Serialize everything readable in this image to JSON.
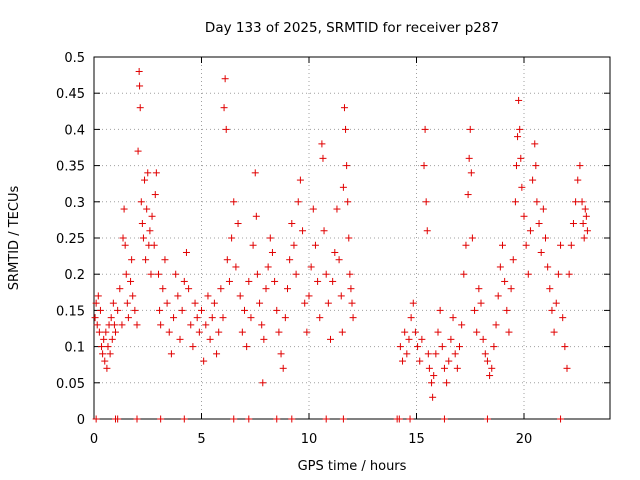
{
  "chart_data": {
    "type": "scatter",
    "title": "Day 133 of 2025, SRMTID for receiver p287",
    "xlabel": "GPS time / hours",
    "ylabel": "SRMTID / TECUs",
    "xlim": [
      0,
      24
    ],
    "ylim": [
      0,
      0.5
    ],
    "xticks": [
      0,
      5,
      10,
      15,
      20
    ],
    "xtick_labels": [
      "0",
      "5",
      "10",
      "15",
      "20"
    ],
    "yticks": [
      0,
      0.05,
      0.1,
      0.15,
      0.2,
      0.25,
      0.3,
      0.35,
      0.4,
      0.45,
      0.5
    ],
    "ytick_labels": [
      "0",
      "0.05",
      "0.1",
      "0.15",
      "0.2",
      "0.25",
      "0.3",
      "0.35",
      "0.4",
      "0.45",
      "0.5"
    ],
    "grid": true,
    "marker": "plus",
    "color": "#e00000",
    "series": [
      {
        "name": "SRMTID",
        "points": [
          [
            0.05,
            0.14
          ],
          [
            0.1,
            0.16
          ],
          [
            0.15,
            0.13
          ],
          [
            0.2,
            0.17
          ],
          [
            0.25,
            0.12
          ],
          [
            0.3,
            0.15
          ],
          [
            0.35,
            0.1
          ],
          [
            0.4,
            0.09
          ],
          [
            0.45,
            0.11
          ],
          [
            0.5,
            0.08
          ],
          [
            0.55,
            0.12
          ],
          [
            0.6,
            0.07
          ],
          [
            0.65,
            0.1
          ],
          [
            0.7,
            0.13
          ],
          [
            0.75,
            0.09
          ],
          [
            0.8,
            0.14
          ],
          [
            0.85,
            0.11
          ],
          [
            0.9,
            0.16
          ],
          [
            0.95,
            0.13
          ],
          [
            1.0,
            0.12
          ],
          [
            1.1,
            0.15
          ],
          [
            1.2,
            0.18
          ],
          [
            1.3,
            0.13
          ],
          [
            1.35,
            0.25
          ],
          [
            1.4,
            0.29
          ],
          [
            1.45,
            0.24
          ],
          [
            1.5,
            0.2
          ],
          [
            1.55,
            0.16
          ],
          [
            1.6,
            0.14
          ],
          [
            1.7,
            0.19
          ],
          [
            1.75,
            0.22
          ],
          [
            1.8,
            0.17
          ],
          [
            1.9,
            0.15
          ],
          [
            2.0,
            0.13
          ],
          [
            2.05,
            0.37
          ],
          [
            2.1,
            0.48
          ],
          [
            2.12,
            0.46
          ],
          [
            2.15,
            0.43
          ],
          [
            2.2,
            0.3
          ],
          [
            2.25,
            0.27
          ],
          [
            2.3,
            0.25
          ],
          [
            2.35,
            0.33
          ],
          [
            2.4,
            0.22
          ],
          [
            2.45,
            0.29
          ],
          [
            2.5,
            0.34
          ],
          [
            2.55,
            0.24
          ],
          [
            2.6,
            0.26
          ],
          [
            2.65,
            0.2
          ],
          [
            2.7,
            0.28
          ],
          [
            2.8,
            0.24
          ],
          [
            2.85,
            0.31
          ],
          [
            2.9,
            0.34
          ],
          [
            3.0,
            0.2
          ],
          [
            3.05,
            0.15
          ],
          [
            3.1,
            0.13
          ],
          [
            3.2,
            0.18
          ],
          [
            3.3,
            0.22
          ],
          [
            3.4,
            0.16
          ],
          [
            3.5,
            0.12
          ],
          [
            3.6,
            0.09
          ],
          [
            3.7,
            0.14
          ],
          [
            3.8,
            0.2
          ],
          [
            3.9,
            0.17
          ],
          [
            4.0,
            0.11
          ],
          [
            4.1,
            0.15
          ],
          [
            4.2,
            0.19
          ],
          [
            4.3,
            0.23
          ],
          [
            4.4,
            0.18
          ],
          [
            4.5,
            0.13
          ],
          [
            4.6,
            0.1
          ],
          [
            4.7,
            0.16
          ],
          [
            4.8,
            0.14
          ],
          [
            4.9,
            0.12
          ],
          [
            5.0,
            0.15
          ],
          [
            5.1,
            0.08
          ],
          [
            5.2,
            0.13
          ],
          [
            5.3,
            0.17
          ],
          [
            5.4,
            0.11
          ],
          [
            5.5,
            0.14
          ],
          [
            5.6,
            0.16
          ],
          [
            5.7,
            0.09
          ],
          [
            5.8,
            0.12
          ],
          [
            5.9,
            0.18
          ],
          [
            6.0,
            0.14
          ],
          [
            6.05,
            0.43
          ],
          [
            6.1,
            0.47
          ],
          [
            6.15,
            0.4
          ],
          [
            6.2,
            0.22
          ],
          [
            6.3,
            0.19
          ],
          [
            6.4,
            0.25
          ],
          [
            6.5,
            0.3
          ],
          [
            6.6,
            0.21
          ],
          [
            6.7,
            0.27
          ],
          [
            6.8,
            0.17
          ],
          [
            6.9,
            0.12
          ],
          [
            7.0,
            0.15
          ],
          [
            7.1,
            0.1
          ],
          [
            7.2,
            0.19
          ],
          [
            7.3,
            0.14
          ],
          [
            7.4,
            0.24
          ],
          [
            7.5,
            0.34
          ],
          [
            7.55,
            0.28
          ],
          [
            7.6,
            0.2
          ],
          [
            7.7,
            0.16
          ],
          [
            7.8,
            0.13
          ],
          [
            7.85,
            0.05
          ],
          [
            7.9,
            0.11
          ],
          [
            8.0,
            0.18
          ],
          [
            8.1,
            0.21
          ],
          [
            8.2,
            0.25
          ],
          [
            8.3,
            0.23
          ],
          [
            8.4,
            0.19
          ],
          [
            8.5,
            0.15
          ],
          [
            8.6,
            0.12
          ],
          [
            8.7,
            0.09
          ],
          [
            8.8,
            0.07
          ],
          [
            8.9,
            0.14
          ],
          [
            9.0,
            0.18
          ],
          [
            9.1,
            0.22
          ],
          [
            9.2,
            0.27
          ],
          [
            9.3,
            0.24
          ],
          [
            9.4,
            0.2
          ],
          [
            9.5,
            0.3
          ],
          [
            9.6,
            0.33
          ],
          [
            9.7,
            0.26
          ],
          [
            9.8,
            0.16
          ],
          [
            9.9,
            0.12
          ],
          [
            10.0,
            0.17
          ],
          [
            10.1,
            0.21
          ],
          [
            10.2,
            0.29
          ],
          [
            10.3,
            0.24
          ],
          [
            10.4,
            0.19
          ],
          [
            10.5,
            0.14
          ],
          [
            10.6,
            0.38
          ],
          [
            10.65,
            0.36
          ],
          [
            10.7,
            0.26
          ],
          [
            10.8,
            0.2
          ],
          [
            10.9,
            0.16
          ],
          [
            11.0,
            0.11
          ],
          [
            11.1,
            0.19
          ],
          [
            11.2,
            0.23
          ],
          [
            11.3,
            0.29
          ],
          [
            11.4,
            0.22
          ],
          [
            11.5,
            0.17
          ],
          [
            11.55,
            0.12
          ],
          [
            11.6,
            0.32
          ],
          [
            11.65,
            0.43
          ],
          [
            11.7,
            0.4
          ],
          [
            11.75,
            0.35
          ],
          [
            11.8,
            0.3
          ],
          [
            11.85,
            0.25
          ],
          [
            11.9,
            0.2
          ],
          [
            11.95,
            0.18
          ],
          [
            12.0,
            0.16
          ],
          [
            12.05,
            0.14
          ],
          [
            14.25,
            0.1
          ],
          [
            14.35,
            0.08
          ],
          [
            14.45,
            0.12
          ],
          [
            14.55,
            0.09
          ],
          [
            14.65,
            0.11
          ],
          [
            14.75,
            0.14
          ],
          [
            14.85,
            0.16
          ],
          [
            14.95,
            0.12
          ],
          [
            15.05,
            0.1
          ],
          [
            15.15,
            0.08
          ],
          [
            15.25,
            0.11
          ],
          [
            15.35,
            0.35
          ],
          [
            15.4,
            0.4
          ],
          [
            15.45,
            0.3
          ],
          [
            15.5,
            0.26
          ],
          [
            15.55,
            0.09
          ],
          [
            15.6,
            0.07
          ],
          [
            15.7,
            0.05
          ],
          [
            15.75,
            0.03
          ],
          [
            15.8,
            0.06
          ],
          [
            15.9,
            0.09
          ],
          [
            16.0,
            0.12
          ],
          [
            16.1,
            0.15
          ],
          [
            16.2,
            0.1
          ],
          [
            16.3,
            0.07
          ],
          [
            16.4,
            0.05
          ],
          [
            16.5,
            0.08
          ],
          [
            16.6,
            0.11
          ],
          [
            16.7,
            0.14
          ],
          [
            16.8,
            0.09
          ],
          [
            16.9,
            0.07
          ],
          [
            17.0,
            0.1
          ],
          [
            17.1,
            0.13
          ],
          [
            17.2,
            0.2
          ],
          [
            17.3,
            0.24
          ],
          [
            17.4,
            0.31
          ],
          [
            17.45,
            0.36
          ],
          [
            17.5,
            0.4
          ],
          [
            17.55,
            0.34
          ],
          [
            17.6,
            0.25
          ],
          [
            17.7,
            0.15
          ],
          [
            17.8,
            0.12
          ],
          [
            17.9,
            0.18
          ],
          [
            18.0,
            0.16
          ],
          [
            18.1,
            0.11
          ],
          [
            18.2,
            0.09
          ],
          [
            18.3,
            0.08
          ],
          [
            18.4,
            0.06
          ],
          [
            18.5,
            0.07
          ],
          [
            18.6,
            0.1
          ],
          [
            18.7,
            0.13
          ],
          [
            18.8,
            0.17
          ],
          [
            18.9,
            0.21
          ],
          [
            19.0,
            0.24
          ],
          [
            19.1,
            0.19
          ],
          [
            19.2,
            0.15
          ],
          [
            19.3,
            0.12
          ],
          [
            19.4,
            0.18
          ],
          [
            19.5,
            0.22
          ],
          [
            19.6,
            0.3
          ],
          [
            19.65,
            0.35
          ],
          [
            19.7,
            0.39
          ],
          [
            19.75,
            0.44
          ],
          [
            19.8,
            0.4
          ],
          [
            19.85,
            0.36
          ],
          [
            19.9,
            0.32
          ],
          [
            20.0,
            0.28
          ],
          [
            20.1,
            0.24
          ],
          [
            20.2,
            0.2
          ],
          [
            20.3,
            0.26
          ],
          [
            20.4,
            0.33
          ],
          [
            20.5,
            0.38
          ],
          [
            20.55,
            0.35
          ],
          [
            20.6,
            0.3
          ],
          [
            20.7,
            0.27
          ],
          [
            20.8,
            0.23
          ],
          [
            20.9,
            0.29
          ],
          [
            21.0,
            0.25
          ],
          [
            21.1,
            0.21
          ],
          [
            21.2,
            0.18
          ],
          [
            21.3,
            0.15
          ],
          [
            21.4,
            0.12
          ],
          [
            21.5,
            0.16
          ],
          [
            21.6,
            0.2
          ],
          [
            21.7,
            0.24
          ],
          [
            21.8,
            0.14
          ],
          [
            21.9,
            0.1
          ],
          [
            22.0,
            0.07
          ],
          [
            22.1,
            0.2
          ],
          [
            22.2,
            0.24
          ],
          [
            22.3,
            0.27
          ],
          [
            22.4,
            0.3
          ],
          [
            22.5,
            0.33
          ],
          [
            22.6,
            0.35
          ],
          [
            22.7,
            0.3
          ],
          [
            22.75,
            0.27
          ],
          [
            22.8,
            0.25
          ],
          [
            22.85,
            0.29
          ],
          [
            22.9,
            0.28
          ],
          [
            22.95,
            0.26
          ],
          [
            0.1,
            0.0
          ],
          [
            1.0,
            0.0
          ],
          [
            1.1,
            0.0
          ],
          [
            2.0,
            0.0
          ],
          [
            3.1,
            0.0
          ],
          [
            4.2,
            0.0
          ],
          [
            6.5,
            0.0
          ],
          [
            7.2,
            0.0
          ],
          [
            8.5,
            0.0
          ],
          [
            9.2,
            0.0
          ],
          [
            10.8,
            0.0
          ],
          [
            11.6,
            0.0
          ],
          [
            14.1,
            0.0
          ],
          [
            14.2,
            0.0
          ],
          [
            14.7,
            0.0
          ],
          [
            16.3,
            0.0
          ],
          [
            18.3,
            0.0
          ],
          [
            21.7,
            0.0
          ]
        ]
      }
    ]
  }
}
